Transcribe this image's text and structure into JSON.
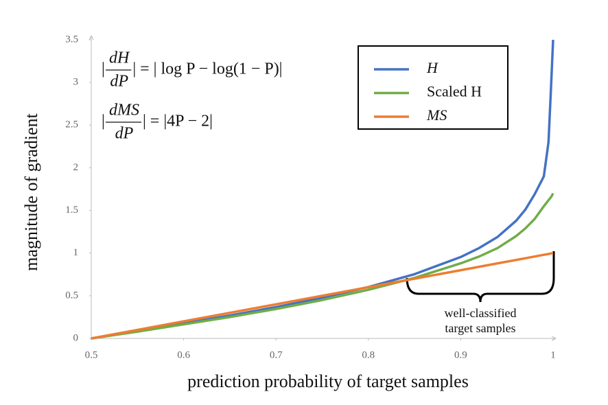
{
  "chart_data": {
    "type": "line",
    "x_label": "prediction probability of target samples",
    "y_label": "magnitude of gradient",
    "x": [
      0.5,
      0.55,
      0.6,
      0.65,
      0.7,
      0.75,
      0.8,
      0.85,
      0.9,
      0.92,
      0.94,
      0.96,
      0.97,
      0.98,
      0.99,
      0.995,
      0.998,
      1
    ],
    "series": [
      {
        "name": "H",
        "color": "#4472c4",
        "values": [
          0,
          0.087,
          0.176,
          0.269,
          0.368,
          0.477,
          0.602,
          0.753,
          0.954,
          1.06,
          1.19,
          1.38,
          1.51,
          1.69,
          1.9,
          2.3,
          3.0,
          3.5
        ]
      },
      {
        "name": "Scaled H",
        "color": "#70ad47",
        "values": [
          0,
          0.08,
          0.165,
          0.25,
          0.345,
          0.45,
          0.57,
          0.71,
          0.88,
          0.96,
          1.06,
          1.2,
          1.29,
          1.4,
          1.55,
          1.62,
          1.66,
          1.7
        ]
      },
      {
        "name": "MS",
        "color": "#ed7d31",
        "values": [
          0,
          0.1,
          0.2,
          0.3,
          0.4,
          0.5,
          0.6,
          0.7,
          0.8,
          0.84,
          0.88,
          0.92,
          0.94,
          0.96,
          0.98,
          0.99,
          0.996,
          1
        ]
      }
    ],
    "xlim": [
      0.5,
      1
    ],
    "ylim": [
      0,
      3.5
    ],
    "xticks": [
      0.5,
      0.6,
      0.7,
      0.8,
      0.9,
      1
    ],
    "yticks": [
      0,
      0.5,
      1,
      1.5,
      2,
      2.5,
      3,
      3.5
    ],
    "grid": false,
    "legend": "upper right",
    "formulas": [
      {
        "open": "|",
        "numerator": "dH",
        "denominator": "dP",
        "rest": "| = | log P − log(1 − P)|"
      },
      {
        "open": "|",
        "numerator": "dMS",
        "denominator": "dP",
        "rest": "| = |4P − 2|"
      }
    ],
    "annotation": [
      "well-classified",
      "target samples"
    ]
  }
}
